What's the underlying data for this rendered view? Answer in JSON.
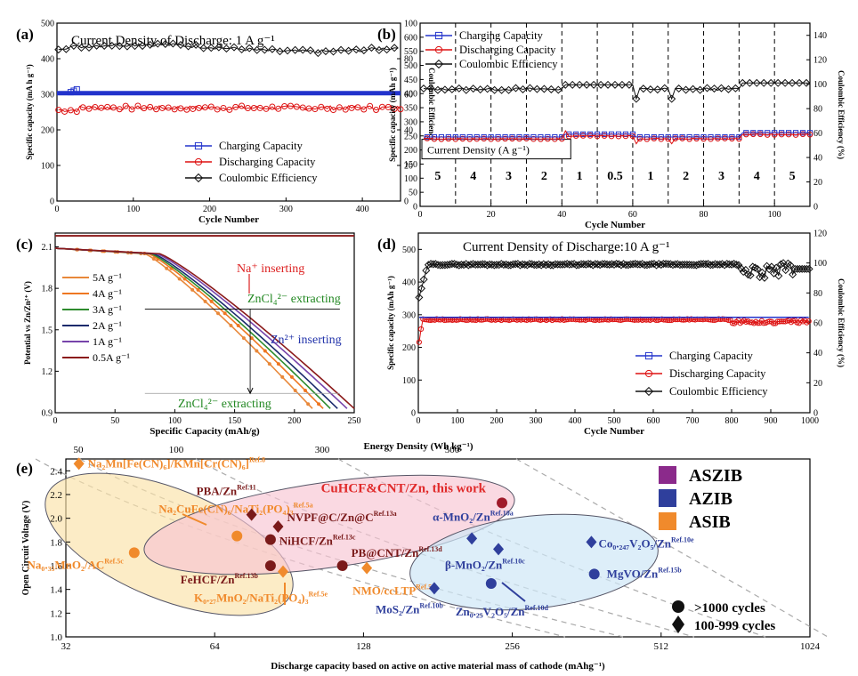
{
  "chart_data": [
    {
      "panel": "(a)",
      "type": "line",
      "title": "Current Density of Discharge: 1 A g⁻¹",
      "xlabel": "Cycle Number",
      "ylabel": "Specific capacity (mA h g⁻¹)",
      "y2label": "Coulombic Efficiency (%)",
      "xlim": [
        0,
        450
      ],
      "ylim": [
        0,
        500
      ],
      "y2lim": [
        0,
        100
      ],
      "xticks": [
        0,
        100,
        200,
        300,
        400
      ],
      "yticks": [
        0,
        100,
        200,
        300,
        400,
        500
      ],
      "y2ticks": [
        0,
        20,
        40,
        60,
        80,
        100
      ],
      "legend_position": "lower-right",
      "series": [
        {
          "name": "Charging Capacity",
          "color": "#2233cc",
          "marker": "square",
          "axis": "left",
          "approx_value": 303
        },
        {
          "name": "Discharging Capacity",
          "color": "#dd1111",
          "marker": "circle",
          "axis": "left",
          "approx_value": 262
        },
        {
          "name": "Coulombic Efficiency",
          "color": "#111111",
          "marker": "diamond",
          "axis": "right",
          "approx_value": 86
        }
      ]
    },
    {
      "panel": "(b)",
      "type": "line",
      "xlabel": "Cycle Number",
      "ylabel": "Specific capacity (mAh g⁻¹)",
      "y2label": "Coulombic Efficiency (%)",
      "xlim": [
        0,
        110
      ],
      "ylim": [
        0,
        650
      ],
      "y2lim": [
        0,
        150
      ],
      "xticks": [
        0,
        20,
        40,
        60,
        80,
        100
      ],
      "yticks": [
        0,
        50,
        100,
        150,
        200,
        250,
        300,
        350,
        400,
        450,
        500,
        550,
        600
      ],
      "y2ticks": [
        0,
        20,
        40,
        60,
        80,
        100,
        120,
        140
      ],
      "legend_position": "top-left",
      "rate_box_label": "Current Density (A g⁻¹)",
      "rate_segments": [
        "5",
        "4",
        "3",
        "2",
        "1",
        "0.5",
        "1",
        "2",
        "3",
        "4",
        "5"
      ],
      "segment_boundaries": [
        10,
        20,
        30,
        40,
        50,
        60,
        70,
        80,
        90,
        100
      ],
      "series": [
        {
          "name": "Charging Capacity",
          "color": "#2233cc",
          "marker": "square",
          "axis": "left",
          "approx_value": 248
        },
        {
          "name": "Discharging Capacity",
          "color": "#dd1111",
          "marker": "circle",
          "axis": "left",
          "approx_value": 245
        },
        {
          "name": "Coulombic Efficiency",
          "color": "#111111",
          "marker": "diamond",
          "axis": "right",
          "approx_value": 97
        }
      ]
    },
    {
      "panel": "(c)",
      "type": "line",
      "xlabel": "Specific Capacity (mAh/g)",
      "ylabel": "Potential vs Zn/Zn²⁺ (V)",
      "xlim": [
        0,
        250
      ],
      "ylim": [
        0.9,
        2.2
      ],
      "xticks": [
        0,
        50,
        100,
        150,
        200,
        250
      ],
      "yticks": [
        0.9,
        1.2,
        1.5,
        1.8,
        2.1
      ],
      "annotations": [
        "Na⁺ inserting",
        "ZnCl₄²⁻ extracting",
        "Zn²⁺ inserting",
        "ZnCl₄²⁻ extracting"
      ],
      "series": [
        {
          "name": "5A g⁻¹",
          "color": "#e8883a",
          "end_capacity": 215
        },
        {
          "name": "4A g⁻¹",
          "color": "#ee7722",
          "end_capacity": 224
        },
        {
          "name": "3A g⁻¹",
          "color": "#2e8b2e",
          "end_capacity": 230
        },
        {
          "name": "2A g⁻¹",
          "color": "#1a2a6c",
          "end_capacity": 236
        },
        {
          "name": "1A g⁻¹",
          "color": "#7744aa",
          "end_capacity": 244
        },
        {
          "name": "0.5A g⁻¹",
          "color": "#8b1a1a",
          "end_capacity": 250
        }
      ]
    },
    {
      "panel": "(d)",
      "type": "line",
      "title": "Current Density of Discharge:10 A g⁻¹",
      "xlabel": "Cycle Number",
      "ylabel": "Specific capacity (mAh g⁻¹)",
      "y2label": "Coulombic Efficiency (%)",
      "xlim": [
        0,
        1000
      ],
      "ylim": [
        0,
        550
      ],
      "y2lim": [
        0,
        120
      ],
      "xticks": [
        0,
        100,
        200,
        300,
        400,
        500,
        600,
        700,
        800,
        900,
        1000
      ],
      "yticks": [
        0,
        100,
        200,
        300,
        400,
        500
      ],
      "y2ticks": [
        0,
        20,
        40,
        60,
        80,
        100,
        120
      ],
      "legend_position": "lower-right",
      "series": [
        {
          "name": "Charging Capacity",
          "color": "#2233cc",
          "marker": "square",
          "axis": "left",
          "approx_value": 290
        },
        {
          "name": "Discharging Capacity",
          "color": "#dd1111",
          "marker": "circle",
          "axis": "left",
          "approx_value": 285
        },
        {
          "name": "Coulombic Efficiency",
          "color": "#111111",
          "marker": "diamond",
          "axis": "right",
          "approx_value": 99
        }
      ]
    },
    {
      "panel": "(e)",
      "type": "scatter",
      "xlabel": "Discharge capacity based on active on active material mass of cathode (mAhg⁻¹)",
      "ylabel": "Open Circuit Voltage (V)",
      "x2label": "Energy Density (Wh kg⁻¹)",
      "xscale": "log2",
      "xlim": [
        32,
        1024
      ],
      "ylim": [
        1.0,
        2.5
      ],
      "xticks": [
        32,
        64,
        128,
        256,
        512,
        1024
      ],
      "yticks": [
        1.0,
        1.2,
        1.4,
        1.6,
        1.8,
        2.0,
        2.2,
        2.4
      ],
      "energy_ticks": [
        50,
        100,
        300,
        500
      ],
      "legend": {
        "categories": [
          {
            "name": "ASZIB",
            "color": "#8b2a8b"
          },
          {
            "name": "AZIB",
            "color": "#2f3f9c"
          },
          {
            "name": "ASIB",
            "color": "#f08a2c"
          }
        ],
        "markers": [
          {
            "shape": "circle",
            "label": ">1000  cycles"
          },
          {
            "shape": "diamond",
            "label": "100-999 cycles"
          }
        ]
      },
      "points": [
        {
          "label": "Na₂Mn[Fe(CN)₆]/KMn[Cr(CN)₆]",
          "ref": "Ref.8",
          "x": 34,
          "y": 2.46,
          "shape": "diamond",
          "color": "#f08a2c"
        },
        {
          "label": "Na₂CuFe(CN)₆/NaTi₂(PO₄)₃",
          "ref": "Ref.5a",
          "x": 71,
          "y": 1.85,
          "shape": "circle",
          "color": "#f08a2c"
        },
        {
          "label": "Na₀.₃₅MnO₂/AC",
          "ref": "Ref.5c",
          "x": 44,
          "y": 1.71,
          "shape": "circle",
          "color": "#f08a2c"
        },
        {
          "label": "K₀.₂₇MnO₂/NaTi₂(PO₄)₃",
          "ref": "Ref.5e",
          "x": 88,
          "y": 1.55,
          "shape": "diamond",
          "color": "#f08a2c"
        },
        {
          "label": "NMO/ccLTP",
          "ref": "Ref.5d",
          "x": 130,
          "y": 1.58,
          "shape": "diamond",
          "color": "#f08a2c"
        },
        {
          "label": "PBA/Zn",
          "ref": "Ref.11",
          "x": 76,
          "y": 2.03,
          "shape": "diamond",
          "color": "#7a1a1a"
        },
        {
          "label": "NVPF@C/Zn@C",
          "ref": "Ref.13a",
          "x": 86,
          "y": 1.93,
          "shape": "diamond",
          "color": "#7a1a1a"
        },
        {
          "label": "NiHCF/Zn",
          "ref": "Ref.13c",
          "x": 83,
          "y": 1.82,
          "shape": "circle",
          "color": "#7a1a1a"
        },
        {
          "label": "PB@CNT/Zn",
          "ref": "Ref.13d",
          "x": 116,
          "y": 1.6,
          "shape": "circle",
          "color": "#7a1a1a"
        },
        {
          "label": "FeHCF/Zn",
          "ref": "Ref.13b",
          "x": 83,
          "y": 1.6,
          "shape": "circle",
          "color": "#7a1a1a"
        },
        {
          "label": "CuHCF&CNT/Zn, this work",
          "ref": "",
          "x": 244,
          "y": 2.13,
          "shape": "circle",
          "color": "#a01a2a"
        },
        {
          "label": "α-MnO₂/Zn",
          "ref": "Ref.10a",
          "x": 212,
          "y": 1.83,
          "shape": "diamond",
          "color": "#2f3f9c"
        },
        {
          "label": "β-MnO₂/Zn",
          "ref": "Ref.10c",
          "x": 240,
          "y": 1.74,
          "shape": "diamond",
          "color": "#2f3f9c"
        },
        {
          "label": "Co₀.₂₄₇V₂O₅/Zn",
          "ref": "Ref.10e",
          "x": 370,
          "y": 1.8,
          "shape": "diamond",
          "color": "#2f3f9c"
        },
        {
          "label": "MgVO/Zn",
          "ref": "Ref.15b",
          "x": 375,
          "y": 1.53,
          "shape": "circle",
          "color": "#2f3f9c"
        },
        {
          "label": "MoS₂/Zn",
          "ref": "Ref.10b",
          "x": 178,
          "y": 1.41,
          "shape": "diamond",
          "color": "#2f3f9c"
        },
        {
          "label": "Zn₀.₂₅V₂O₅/Zn",
          "ref": "Ref.10d",
          "x": 232,
          "y": 1.45,
          "shape": "circle",
          "color": "#2f3f9c"
        }
      ]
    }
  ]
}
